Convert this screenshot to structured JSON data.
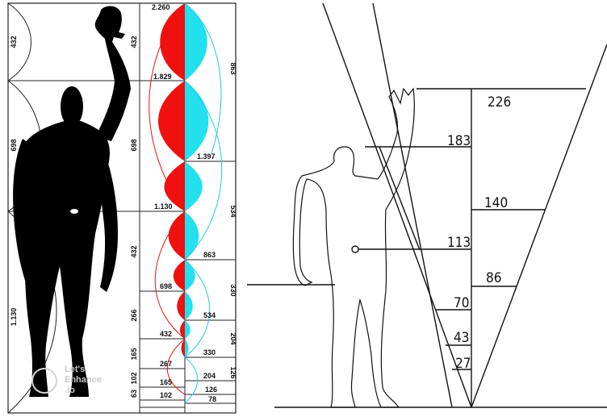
{
  "left_panel": {
    "outer_column_labels": [
      "432",
      "698",
      "1.130"
    ],
    "middle_column_labels": [
      "432",
      "698",
      "432",
      "266",
      "165",
      "102",
      "63"
    ],
    "red_series_values": [
      "2.260",
      "1.829",
      "1.130",
      "698",
      "432",
      "267",
      "165",
      "102"
    ],
    "blue_series_values": [
      "1.397",
      "863",
      "534",
      "330",
      "204",
      "126",
      "78"
    ],
    "right_column_labels": [
      "863",
      "534",
      "330",
      "204",
      "126"
    ],
    "colors": {
      "red": "#f01010",
      "blue": "#22e0ee",
      "figure": "#000000"
    },
    "watermark": {
      "line1": "Let's",
      "line2": "Enhance",
      "line3": ".io"
    }
  },
  "right_panel": {
    "values": [
      "226",
      "183",
      "140",
      "113",
      "86",
      "70",
      "43",
      "27"
    ]
  }
}
